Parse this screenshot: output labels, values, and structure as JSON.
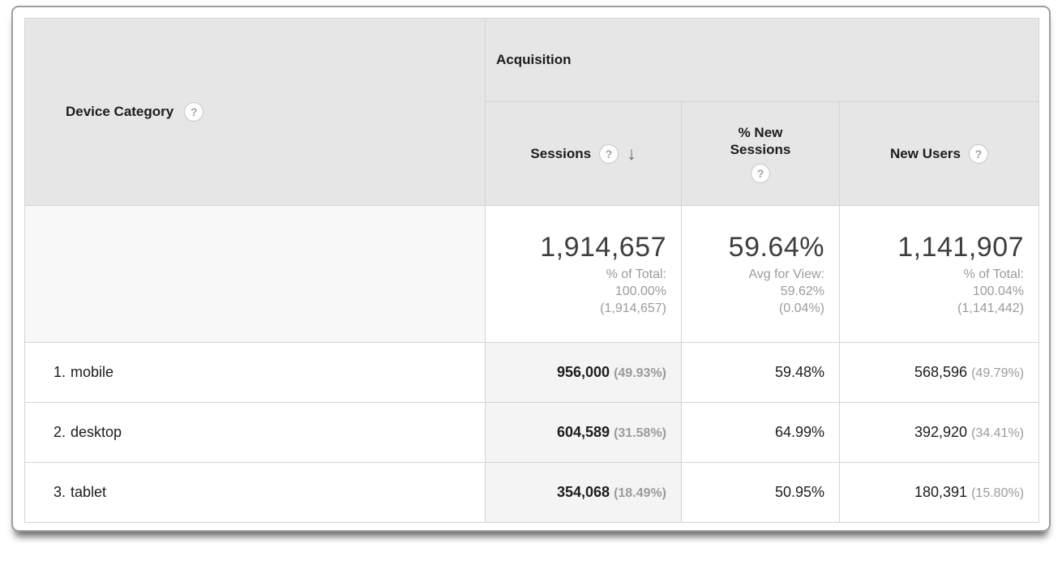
{
  "header": {
    "device_category": "Device Category",
    "acquisition": "Acquisition",
    "sessions": "Sessions",
    "percent_new_sessions_line1": "% New",
    "percent_new_sessions_line2": "Sessions",
    "new_users": "New Users",
    "help_glyph": "?",
    "sort_arrow": "↓"
  },
  "summary": {
    "sessions": {
      "value": "1,914,657",
      "sub": [
        "% of Total:",
        "100.00%",
        "(1,914,657)"
      ]
    },
    "percent_new_sessions": {
      "value": "59.64%",
      "sub": [
        "Avg for View:",
        "59.62%",
        "(0.04%)"
      ]
    },
    "new_users": {
      "value": "1,141,907",
      "sub": [
        "% of Total:",
        "100.04%",
        "(1,141,442)"
      ]
    }
  },
  "rows": [
    {
      "rank": "1.",
      "device": "mobile",
      "sessions": "956,000",
      "sessions_pct": "(49.93%)",
      "new_sessions": "59.48%",
      "new_users": "568,596",
      "new_users_pct": "(49.79%)"
    },
    {
      "rank": "2.",
      "device": "desktop",
      "sessions": "604,589",
      "sessions_pct": "(31.58%)",
      "new_sessions": "64.99%",
      "new_users": "392,920",
      "new_users_pct": "(34.41%)"
    },
    {
      "rank": "3.",
      "device": "tablet",
      "sessions": "354,068",
      "sessions_pct": "(18.49%)",
      "new_sessions": "50.95%",
      "new_users": "180,391",
      "new_users_pct": "(15.80%)"
    }
  ],
  "colors": {
    "header_bg": "#e6e6e6",
    "sorted_column_bg": "#f4f4f4",
    "grid_border": "#d4d4d4",
    "card_border": "#9e9e9e",
    "primary_text": "#1c1c1c",
    "secondary_text": "#9b9b9b",
    "summary_value_text": "#3e3e3e"
  }
}
